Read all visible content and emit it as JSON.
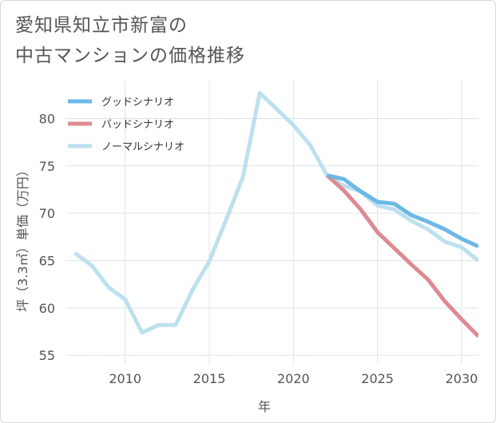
{
  "title_lines": [
    "愛知県知立市新富の",
    "中古マンションの価格推移"
  ],
  "chart_data": {
    "type": "line",
    "xlabel": "年",
    "ylabel": "坪（3.3㎡）単価（万円）",
    "xlim": [
      2006.5,
      2031
    ],
    "ylim": [
      54,
      84
    ],
    "xticks": [
      2010,
      2015,
      2020,
      2025,
      2030
    ],
    "yticks": [
      55,
      60,
      65,
      70,
      75,
      80
    ],
    "grid": true,
    "legend_position": "top-left",
    "series": [
      {
        "name": "グッドシナリオ",
        "color": "#6cb8e6",
        "x": [
          2022,
          2023,
          2024,
          2025,
          2026,
          2027,
          2028,
          2029,
          2030,
          2031
        ],
        "y": [
          74.0,
          73.6,
          72.3,
          71.2,
          71.0,
          69.8,
          69.1,
          68.3,
          67.3,
          66.5
        ]
      },
      {
        "name": "バッドシナリオ",
        "color": "#dd8a93",
        "x": [
          2022,
          2023,
          2024,
          2025,
          2026,
          2027,
          2028,
          2029,
          2030,
          2031
        ],
        "y": [
          74.0,
          72.4,
          70.4,
          68.0,
          66.3,
          64.6,
          63.0,
          60.7,
          58.8,
          57.0
        ]
      },
      {
        "name": "ノーマルシナリオ",
        "color": "#bde0ef",
        "x": [
          2007,
          2008,
          2009,
          2010,
          2011,
          2012,
          2013,
          2014,
          2015,
          2016,
          2017,
          2018,
          2019,
          2020,
          2021,
          2022,
          2023,
          2024,
          2025,
          2026,
          2027,
          2028,
          2029,
          2030,
          2031
        ],
        "y": [
          65.8,
          64.5,
          62.2,
          60.9,
          57.4,
          58.2,
          58.2,
          61.9,
          64.9,
          69.3,
          73.8,
          82.7,
          81.0,
          79.3,
          77.2,
          74.0,
          72.9,
          72.3,
          70.8,
          70.4,
          69.2,
          68.3,
          67.0,
          66.4,
          65.0
        ]
      }
    ]
  }
}
